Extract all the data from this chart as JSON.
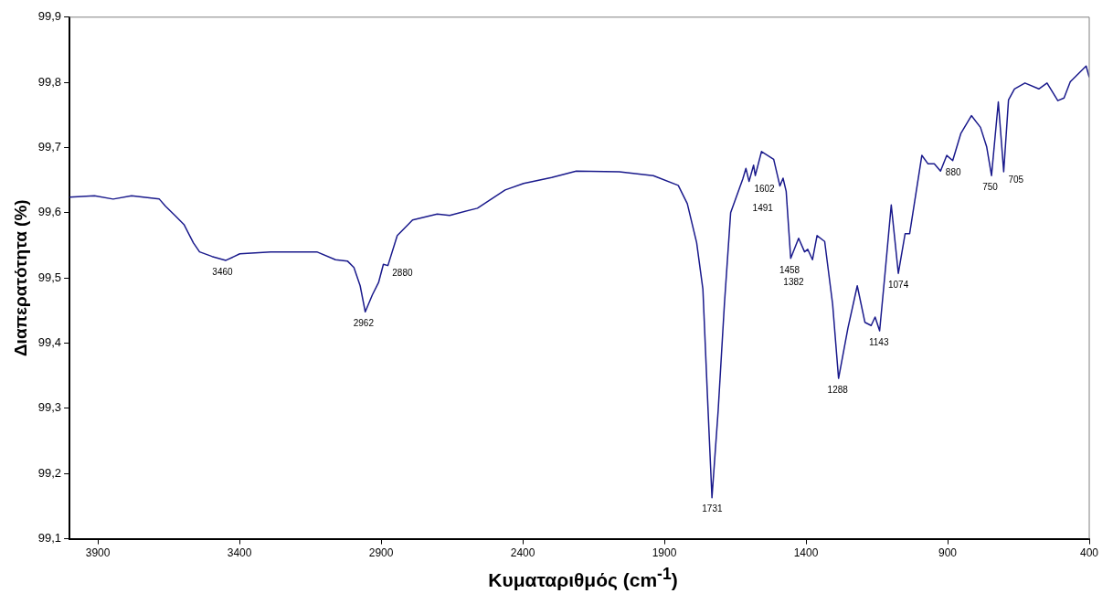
{
  "chart_data": {
    "type": "line",
    "xlabel": "Κυματαριθμός (cm$^{-1}$)",
    "ylabel": "Διαπερατότητα (%)",
    "xlim": [
      4000,
      400
    ],
    "xticks": [
      3900,
      3400,
      2900,
      2400,
      1900,
      1400,
      900,
      400
    ],
    "ylim": [
      99.1,
      99.9
    ],
    "yticks": [
      {
        "value": 99.1,
        "label": "99,1"
      },
      {
        "value": 99.2,
        "label": "99,2"
      },
      {
        "value": 99.3,
        "label": "99,3"
      },
      {
        "value": 99.4,
        "label": "99,4"
      },
      {
        "value": 99.5,
        "label": "99,5"
      },
      {
        "value": 99.6,
        "label": "99,6"
      },
      {
        "value": 99.7,
        "label": "99,7"
      },
      {
        "value": 99.8,
        "label": "99,8"
      },
      {
        "value": 99.9,
        "label": "99,9"
      }
    ],
    "grid": false,
    "legend": false,
    "marker": "none",
    "line_style": "solid",
    "series": [
      {
        "color": "#1a1a8c",
        "x": [
          4000,
          3912,
          3846,
          3781,
          3683,
          3661,
          3628,
          3596,
          3563,
          3541,
          3497,
          3448,
          3399,
          3290,
          3127,
          3061,
          3019,
          2996,
          2974,
          2956,
          2931,
          2909,
          2892,
          2876,
          2843,
          2800,
          2789,
          2702,
          2658,
          2560,
          2462,
          2397,
          2298,
          2211,
          2059,
          1939,
          1851,
          1819,
          1786,
          1764,
          1748,
          1732,
          1710,
          1688,
          1666,
          1623,
          1612,
          1601,
          1585,
          1579,
          1557,
          1514,
          1492,
          1481,
          1470,
          1454,
          1426,
          1405,
          1394,
          1377,
          1361,
          1334,
          1306,
          1285,
          1252,
          1219,
          1192,
          1170,
          1156,
          1140,
          1121,
          1099,
          1074,
          1050,
          1034,
          991,
          969,
          947,
          925,
          903,
          882,
          853,
          816,
          784,
          762,
          745,
          721,
          702,
          685,
          664,
          627,
          578,
          549,
          511,
          489,
          467,
          411,
          400
        ],
        "values": [
          99.624,
          99.626,
          99.621,
          99.626,
          99.621,
          99.61,
          99.596,
          99.582,
          99.554,
          99.54,
          99.533,
          99.527,
          99.537,
          99.54,
          99.54,
          99.528,
          99.526,
          99.516,
          99.488,
          99.448,
          99.474,
          99.493,
          99.521,
          99.519,
          99.565,
          99.584,
          99.589,
          99.598,
          99.596,
          99.607,
          99.635,
          99.645,
          99.654,
          99.664,
          99.663,
          99.657,
          99.642,
          99.614,
          99.554,
          99.483,
          99.32,
          99.163,
          99.297,
          99.46,
          99.6,
          99.652,
          99.668,
          99.648,
          99.673,
          99.657,
          99.694,
          99.682,
          99.641,
          99.653,
          99.633,
          99.53,
          99.561,
          99.54,
          99.544,
          99.528,
          99.565,
          99.556,
          99.46,
          99.346,
          99.423,
          99.488,
          99.432,
          99.427,
          99.44,
          99.419,
          99.507,
          99.612,
          99.507,
          99.568,
          99.568,
          99.688,
          99.675,
          99.675,
          99.664,
          99.688,
          99.68,
          99.722,
          99.749,
          99.731,
          99.701,
          99.657,
          99.77,
          99.663,
          99.773,
          99.79,
          99.799,
          99.79,
          99.799,
          99.772,
          99.776,
          99.801,
          99.825,
          99.808
        ]
      }
    ],
    "annotations": [
      {
        "text": "3460",
        "x": 3460,
        "y": 99.527
      },
      {
        "text": "2962",
        "x": 2962,
        "y": 99.448
      },
      {
        "text": "2880",
        "x": 2880,
        "y": 99.519
      },
      {
        "text": "1731",
        "x": 1731,
        "y": 99.163
      },
      {
        "text": "1602",
        "x": 1602,
        "y": 99.648
      },
      {
        "text": "1491",
        "x": 1491,
        "y": 99.641
      },
      {
        "text": "1458",
        "x": 1458,
        "y": 99.53
      },
      {
        "text": "1382",
        "x": 1382,
        "y": 99.528
      },
      {
        "text": "1288",
        "x": 1288,
        "y": 99.346
      },
      {
        "text": "1143",
        "x": 1143,
        "y": 99.419
      },
      {
        "text": "1074",
        "x": 1074,
        "y": 99.507
      },
      {
        "text": "880",
        "x": 880,
        "y": 99.68
      },
      {
        "text": "750",
        "x": 750,
        "y": 99.657
      },
      {
        "text": "705",
        "x": 705,
        "y": 99.663
      }
    ]
  }
}
